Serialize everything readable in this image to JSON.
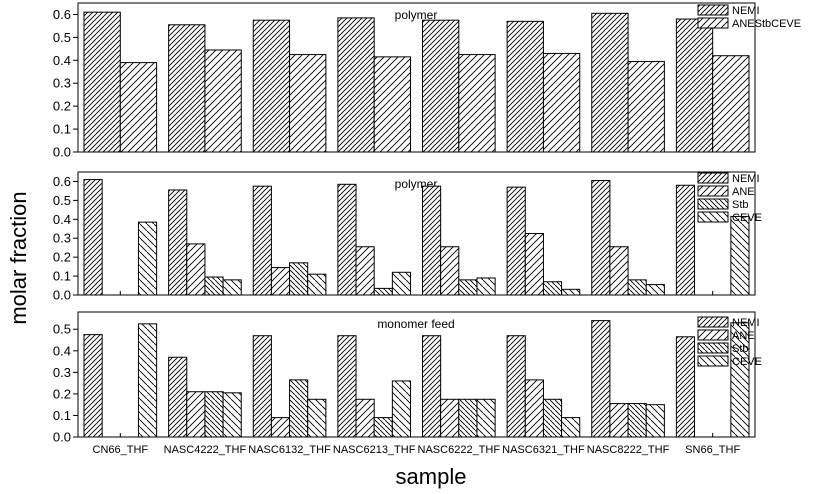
{
  "figure": {
    "ylabel": "molar fraction",
    "xlabel": "sample"
  },
  "chart_data": [
    {
      "type": "bar",
      "title": "polymer",
      "categories": [
        "CN66_THF",
        "NASC4222_THF",
        "NASC6132_THF",
        "NASC6213_THF",
        "NASC6222_THF",
        "NASC6321_THF",
        "NASC8222_THF",
        "SN66_THF"
      ],
      "ylim": [
        0,
        0.65
      ],
      "yticks": [
        "0.0",
        "0.1",
        "0.2",
        "0.3",
        "0.4",
        "0.5",
        "0.6"
      ],
      "legend_position": "top-right",
      "series": [
        {
          "name": "NEMI",
          "values": [
            0.61,
            0.555,
            0.575,
            0.585,
            0.575,
            0.57,
            0.605,
            0.58
          ]
        },
        {
          "name": "ANEStbCEVE",
          "values": [
            0.39,
            0.445,
            0.425,
            0.415,
            0.425,
            0.43,
            0.395,
            0.42
          ]
        }
      ]
    },
    {
      "type": "bar",
      "title": "polymer",
      "categories": [
        "CN66_THF",
        "NASC4222_THF",
        "NASC6132_THF",
        "NASC6213_THF",
        "NASC6222_THF",
        "NASC6321_THF",
        "NASC8222_THF",
        "SN66_THF"
      ],
      "ylim": [
        0,
        0.65
      ],
      "yticks": [
        "0.0",
        "0.1",
        "0.2",
        "0.3",
        "0.4",
        "0.5",
        "0.6"
      ],
      "legend_position": "top-right",
      "series": [
        {
          "name": "NEMI",
          "values": [
            0.61,
            0.555,
            0.575,
            0.585,
            0.575,
            0.57,
            0.605,
            0.58
          ]
        },
        {
          "name": "ANE",
          "values": [
            0,
            0.27,
            0.145,
            0.255,
            0.255,
            0.325,
            0.255,
            0
          ]
        },
        {
          "name": "Stb",
          "values": [
            0,
            0.095,
            0.17,
            0.035,
            0.08,
            0.07,
            0.08,
            0
          ]
        },
        {
          "name": "CEVE",
          "values": [
            0.385,
            0.08,
            0.11,
            0.12,
            0.09,
            0.03,
            0.055,
            0.415
          ]
        }
      ]
    },
    {
      "type": "bar",
      "title": "monomer feed",
      "categories": [
        "CN66_THF",
        "NASC4222_THF",
        "NASC6132_THF",
        "NASC6213_THF",
        "NASC6222_THF",
        "NASC6321_THF",
        "NASC8222_THF",
        "SN66_THF"
      ],
      "ylim": [
        0,
        0.58
      ],
      "yticks": [
        "0.0",
        "0.1",
        "0.2",
        "0.3",
        "0.4",
        "0.5"
      ],
      "legend_position": "top-right",
      "series": [
        {
          "name": "NEMI",
          "values": [
            0.475,
            0.37,
            0.47,
            0.47,
            0.47,
            0.47,
            0.54,
            0.465
          ]
        },
        {
          "name": "ANE",
          "values": [
            0,
            0.21,
            0.09,
            0.175,
            0.175,
            0.265,
            0.155,
            0
          ]
        },
        {
          "name": "Stb",
          "values": [
            0,
            0.21,
            0.265,
            0.09,
            0.175,
            0.175,
            0.155,
            0
          ]
        },
        {
          "name": "CEVE",
          "values": [
            0.525,
            0.205,
            0.175,
            0.26,
            0.175,
            0.09,
            0.15,
            0.53
          ]
        }
      ]
    }
  ]
}
